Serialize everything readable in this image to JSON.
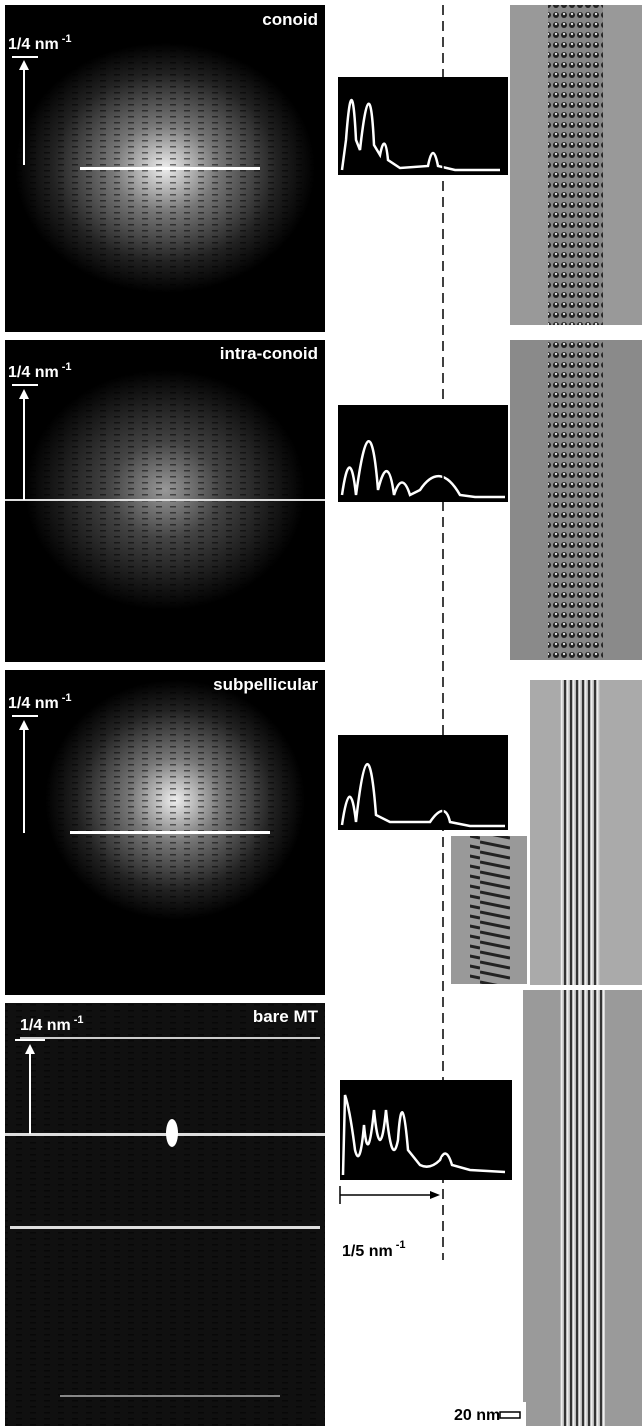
{
  "panels": [
    {
      "label": "conoid",
      "scale_label": {
        "text": "1/4 nm",
        "exponent": "-1"
      }
    },
    {
      "label": "intra-conoid",
      "scale_label": {
        "text": "1/4 nm",
        "exponent": "-1"
      }
    },
    {
      "label": "subpellicular",
      "scale_label": {
        "text": "1/4 nm",
        "exponent": "-1"
      }
    },
    {
      "label": "bare MT",
      "scale_label": {
        "text": "1/4 nm",
        "exponent": "-1"
      }
    }
  ],
  "profile_scale": {
    "text": "1/5 nm",
    "exponent": "-1"
  },
  "scale_bar": "20 nm"
}
